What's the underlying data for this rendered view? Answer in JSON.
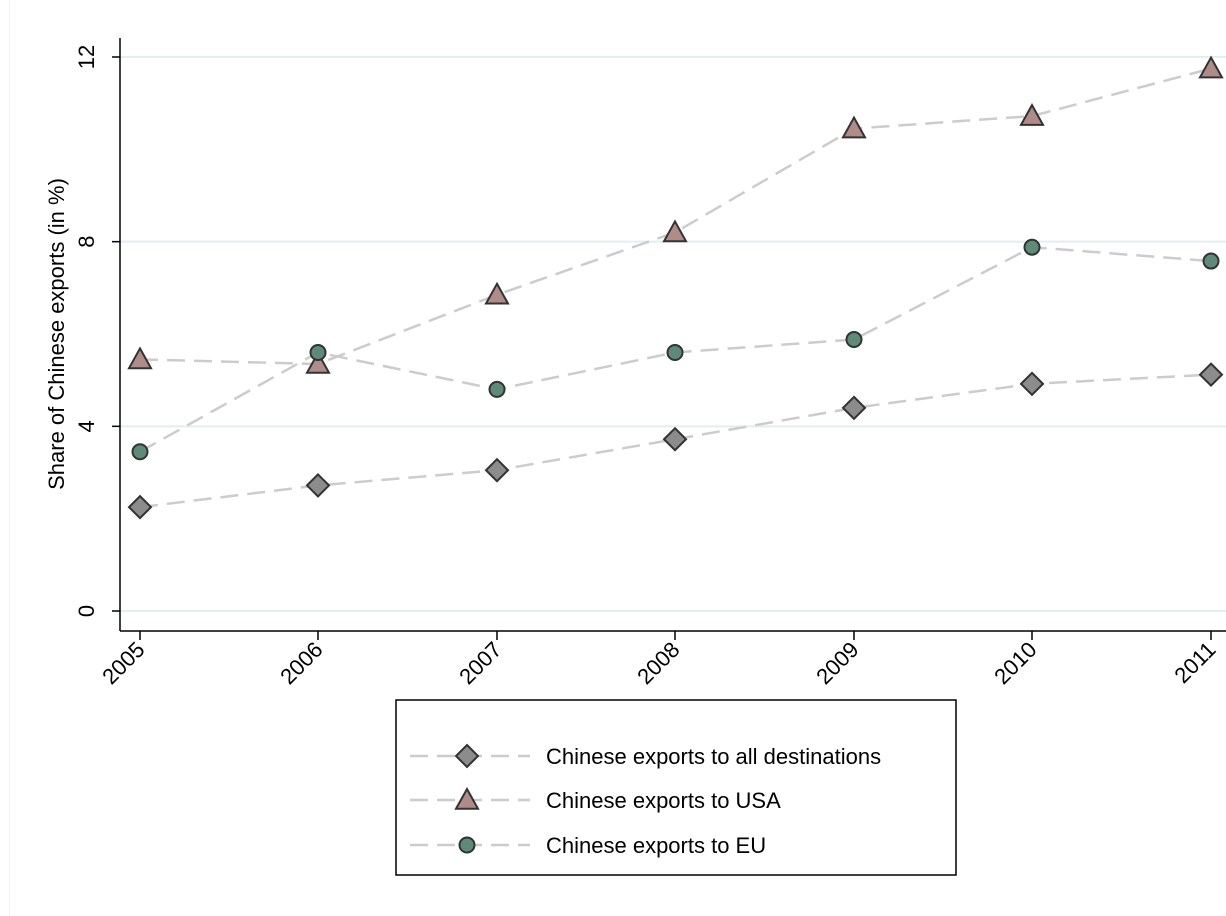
{
  "chart_data": {
    "type": "line",
    "title": "",
    "xlabel": "",
    "ylabel": "Share of Chinese exports (in %)",
    "categories": [
      "2005",
      "2006",
      "2007",
      "2008",
      "2009",
      "2010",
      "2011"
    ],
    "yticks": [
      "0",
      "4",
      "8",
      "12"
    ],
    "ylim": [
      0,
      12.4
    ],
    "grid": true,
    "legend_position": "bottom",
    "series": [
      {
        "name": "Chinese exports to all destinations",
        "marker": "diamond",
        "fill": "#8c8c8c",
        "values": [
          2.25,
          2.72,
          3.05,
          3.72,
          4.4,
          4.92,
          5.12
        ]
      },
      {
        "name": "Chinese exports to USA",
        "marker": "triangle",
        "fill": "#b08c88",
        "values": [
          5.45,
          5.35,
          6.85,
          8.2,
          10.45,
          10.72,
          11.75
        ]
      },
      {
        "name": "Chinese exports to EU",
        "marker": "circle",
        "fill": "#5e8a7a",
        "values": [
          3.45,
          5.6,
          4.8,
          5.6,
          5.88,
          7.88,
          7.58
        ]
      }
    ],
    "colors": {
      "line": "#cccccc",
      "grid": "#e3eef0",
      "axis": "#000000",
      "marker_stroke": "#333333"
    }
  }
}
